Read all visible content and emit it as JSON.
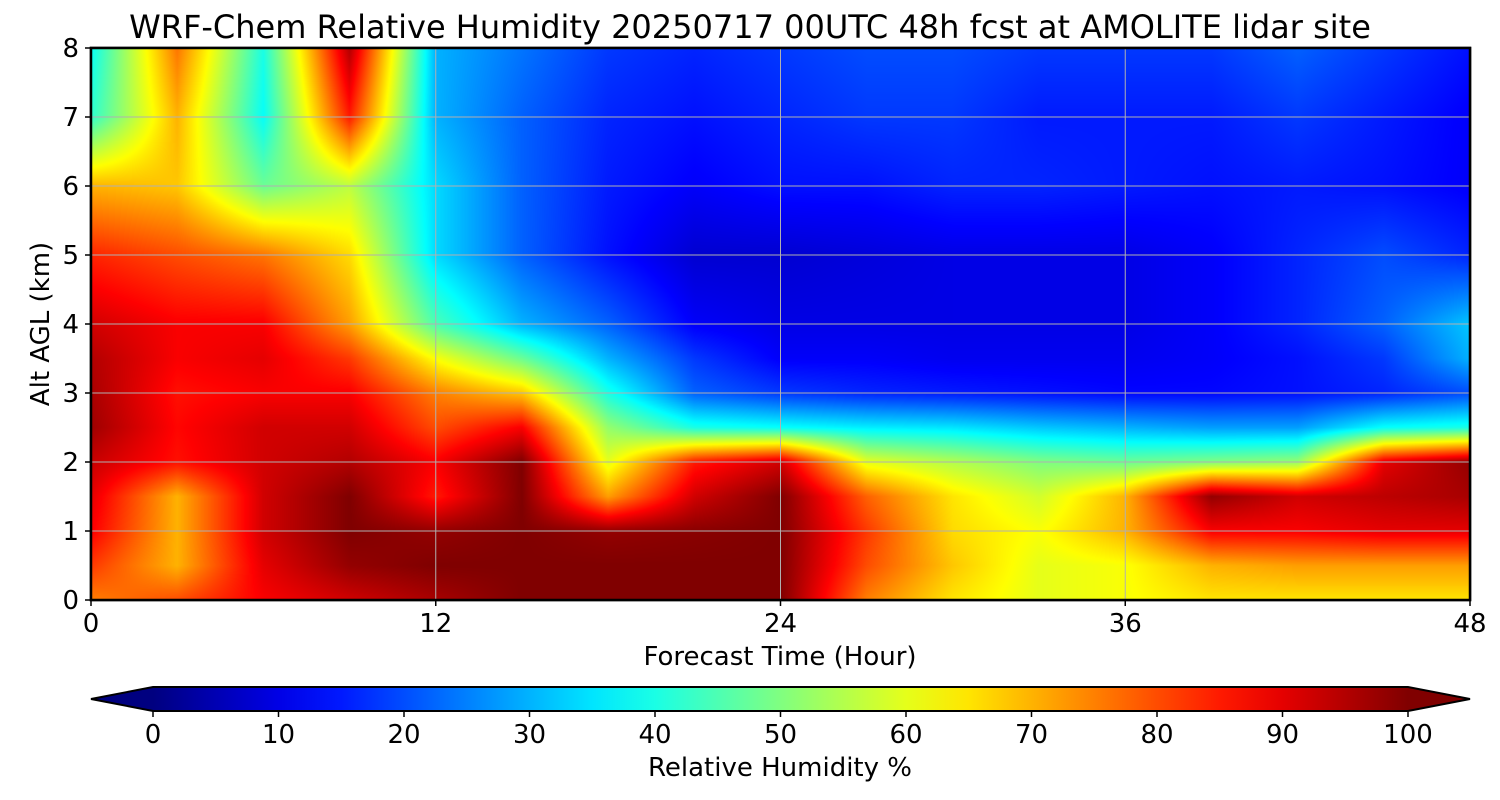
{
  "chart_data": {
    "type": "heatmap",
    "title": "WRF-Chem Relative Humidity 20250717 00UTC 48h fcst at AMOLITE lidar site",
    "xlabel": "Forecast Time (Hour)",
    "ylabel": "Alt AGL (km)",
    "xlim": [
      0,
      48
    ],
    "ylim": [
      0,
      8
    ],
    "x_ticks": [
      0,
      12,
      24,
      36,
      48
    ],
    "y_ticks": [
      0,
      1,
      2,
      3,
      4,
      5,
      6,
      7,
      8
    ],
    "grid": true,
    "colorbar": {
      "label": "Relative Humidity %",
      "range": [
        0,
        100
      ],
      "ticks": [
        0,
        10,
        20,
        30,
        40,
        50,
        60,
        70,
        80,
        90,
        100
      ],
      "colormap": "jet",
      "extend": "both",
      "orientation": "horizontal",
      "placement": "bottom"
    },
    "x": [
      0,
      3,
      6,
      9,
      12,
      15,
      18,
      21,
      24,
      27,
      30,
      33,
      36,
      39,
      42,
      45,
      48
    ],
    "y": [
      0,
      0.5,
      1,
      1.5,
      2,
      2.5,
      3,
      3.5,
      4,
      5,
      6,
      7,
      8
    ],
    "values": [
      [
        75,
        80,
        88,
        92,
        96,
        100,
        100,
        100,
        100,
        75,
        65,
        60,
        62,
        65,
        65,
        65,
        65
      ],
      [
        82,
        70,
        90,
        98,
        100,
        100,
        100,
        100,
        100,
        80,
        68,
        60,
        62,
        70,
        72,
        72,
        72
      ],
      [
        88,
        70,
        92,
        100,
        98,
        100,
        98,
        99,
        100,
        82,
        66,
        62,
        70,
        88,
        88,
        90,
        90
      ],
      [
        90,
        70,
        92,
        100,
        85,
        100,
        72,
        92,
        100,
        78,
        65,
        58,
        70,
        98,
        92,
        94,
        96
      ],
      [
        93,
        86,
        92,
        95,
        88,
        100,
        60,
        85,
        92,
        60,
        55,
        50,
        48,
        50,
        52,
        90,
        98
      ],
      [
        97,
        87,
        92,
        92,
        80,
        88,
        52,
        40,
        38,
        36,
        35,
        32,
        30,
        28,
        28,
        38,
        40
      ],
      [
        96,
        86,
        88,
        88,
        75,
        68,
        40,
        22,
        18,
        16,
        15,
        14,
        13,
        13,
        14,
        16,
        20
      ],
      [
        95,
        88,
        90,
        82,
        62,
        48,
        30,
        18,
        12,
        12,
        11,
        11,
        11,
        12,
        14,
        18,
        30
      ],
      [
        92,
        88,
        88,
        72,
        45,
        30,
        22,
        12,
        10,
        10,
        10,
        10,
        10,
        12,
        16,
        22,
        32
      ],
      [
        84,
        80,
        76,
        66,
        34,
        22,
        14,
        8,
        8,
        9,
        10,
        10,
        10,
        12,
        16,
        20,
        16
      ],
      [
        70,
        68,
        48,
        56,
        34,
        22,
        15,
        12,
        14,
        14,
        16,
        16,
        15,
        14,
        15,
        14,
        12
      ],
      [
        42,
        70,
        38,
        85,
        30,
        22,
        16,
        14,
        16,
        18,
        18,
        15,
        15,
        15,
        18,
        15,
        12
      ],
      [
        38,
        76,
        40,
        95,
        30,
        24,
        18,
        16,
        18,
        20,
        20,
        18,
        18,
        18,
        22,
        18,
        14
      ]
    ]
  }
}
